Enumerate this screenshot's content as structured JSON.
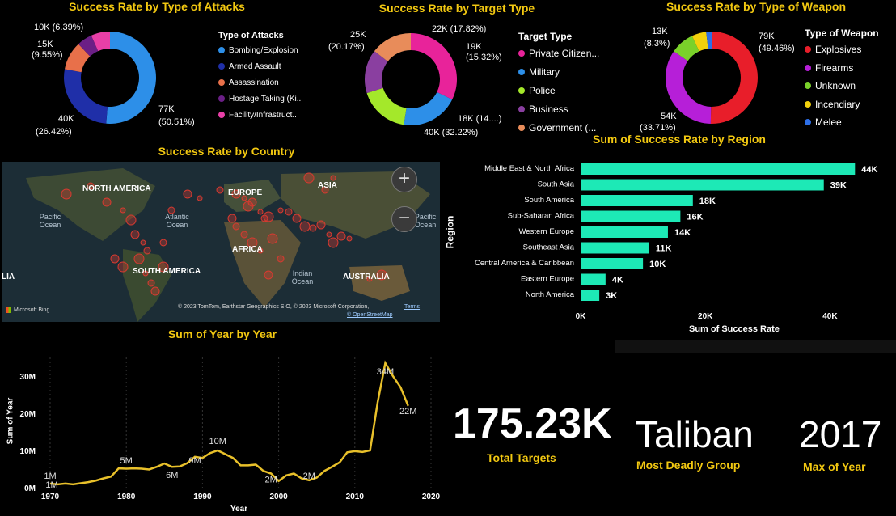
{
  "attacks": {
    "title": "Success Rate by Type of Attacks",
    "legend_title": "Type of Attacks",
    "items": [
      {
        "name": "Bombing/Explosion",
        "color": "#2d8fe8"
      },
      {
        "name": "Armed Assault",
        "color": "#1f2fa8"
      },
      {
        "name": "Assassination",
        "color": "#e8704a"
      },
      {
        "name": "Hostage Taking (Ki..",
        "color": "#6b1f86"
      },
      {
        "name": "Facility/Infrastruct..",
        "color": "#e83fa7"
      }
    ],
    "labels": [
      "10K (6.39%)",
      "15K",
      "(9.55%)",
      "40K",
      "(26.42%)",
      "77K",
      "(50.51%)"
    ]
  },
  "targets": {
    "title": "Success Rate by Target Type",
    "legend_title": "Target Type",
    "items": [
      {
        "name": "Private Citizen...",
        "color": "#e8239a"
      },
      {
        "name": "Military",
        "color": "#2d8fe8"
      },
      {
        "name": "Police",
        "color": "#a4e82a"
      },
      {
        "name": "Business",
        "color": "#8a3fa0"
      },
      {
        "name": "Government (...",
        "color": "#e88c5a"
      }
    ],
    "labels": [
      "25K",
      "(20.17%)",
      "22K (17.82%)",
      "19K",
      "(15.32%)",
      "18K (14....)",
      "40K (32.22%)"
    ]
  },
  "weapons": {
    "title": "Success Rate by Type of Weapon",
    "legend_title": "Type of Weapon",
    "items": [
      {
        "name": "Explosives",
        "color": "#e81e2a"
      },
      {
        "name": "Firearms",
        "color": "#b61fd8"
      },
      {
        "name": "Unknown",
        "color": "#7ad12a"
      },
      {
        "name": "Incendiary",
        "color": "#f2d10c"
      },
      {
        "name": "Melee",
        "color": "#2d6fe8"
      }
    ],
    "labels": [
      "13K",
      "(8.3%)",
      "79K",
      "(49.46%)",
      "54K",
      "(33.71%)"
    ]
  },
  "map": {
    "title": "Success Rate by Country",
    "zoom_in": "+",
    "zoom_out": "−",
    "continents": [
      "NORTH AMERICA",
      "EUROPE",
      "ASIA",
      "AFRICA",
      "SOUTH AMERICA",
      "AUSTRALIA",
      "LIA"
    ],
    "oceans": [
      "Pacific Ocean",
      "Atlantic Ocean",
      "Indian Ocean",
      "Pacific Ocean"
    ],
    "attribution": "© 2023 TomTom, Earthstar Geographics SIO, © 2023 Microsoft Corporation,",
    "terms": "Terms",
    "osm": "© OpenStreetMap",
    "bing": "Microsoft Bing"
  },
  "region_chart": {
    "title": "Sum of Success Rate by Region",
    "ylabel": "Region",
    "xlabel": "Sum of Success Rate",
    "color": "#1de9b6"
  },
  "line_chart": {
    "title": "Sum of Year by Year",
    "ylabel": "Sum of Year",
    "xlabel": "Year",
    "color": "#e8c02a",
    "annotations": [
      "1M",
      "1M",
      "5M",
      "6M",
      "9M",
      "10M",
      "2M",
      "2M",
      "34M",
      "22M"
    ]
  },
  "kpis": [
    {
      "value": "175.23K",
      "label": "Total Targets"
    },
    {
      "value": "Taliban",
      "label": "Most Deadly Group"
    },
    {
      "value": "2017",
      "label": "Max of Year"
    }
  ],
  "chart_data": [
    {
      "type": "pie",
      "title": "Success Rate by Type of Attacks",
      "categories": [
        "Bombing/Explosion",
        "Armed Assault",
        "Assassination",
        "Hostage Taking (Ki..",
        "Facility/Infrastruct.."
      ],
      "values": [
        77000,
        40000,
        15000,
        8000,
        10000
      ]
    },
    {
      "type": "pie",
      "title": "Success Rate by Target Type",
      "categories": [
        "Private Citizen...",
        "Military",
        "Police",
        "Business",
        "Government (..."
      ],
      "values": [
        40000,
        25000,
        22000,
        19000,
        18000
      ]
    },
    {
      "type": "pie",
      "title": "Success Rate by Type of Weapon",
      "categories": [
        "Explosives",
        "Firearms",
        "Unknown",
        "Incendiary",
        "Melee"
      ],
      "values": [
        79000,
        54000,
        13000,
        8000,
        3000
      ]
    },
    {
      "type": "bar",
      "title": "Sum of Success Rate by Region",
      "categories": [
        "Middle East & North Africa",
        "South Asia",
        "South America",
        "Sub-Saharan Africa",
        "Western Europe",
        "Southeast Asia",
        "Central America & Caribbean",
        "Eastern Europe",
        "North America"
      ],
      "values": [
        44000,
        39000,
        18000,
        16000,
        14000,
        11000,
        10000,
        4000,
        3000
      ],
      "data_labels": [
        "44K",
        "39K",
        "18K",
        "16K",
        "14K",
        "11K",
        "10K",
        "4K",
        "3K"
      ],
      "xlabel": "Sum of Success Rate",
      "ylabel": "Region",
      "xlim": [
        0,
        45000
      ],
      "xticks": [
        "0K",
        "20K",
        "40K"
      ]
    },
    {
      "type": "line",
      "title": "Sum of Year by Year",
      "x": [
        1970,
        1971,
        1972,
        1973,
        1974,
        1975,
        1976,
        1977,
        1978,
        1979,
        1980,
        1981,
        1982,
        1983,
        1984,
        1985,
        1986,
        1987,
        1988,
        1989,
        1990,
        1991,
        1992,
        1994,
        1995,
        1996,
        1997,
        1998,
        1999,
        2000,
        2001,
        2002,
        2003,
        2004,
        2005,
        2006,
        2007,
        2008,
        2009,
        2010,
        2011,
        2012,
        2013,
        2014,
        2015,
        2016,
        2017
      ],
      "y": [
        1.1,
        0.9,
        1.1,
        0.9,
        1.2,
        1.5,
        1.9,
        2.5,
        3.0,
        5.2,
        5.1,
        5.2,
        5.1,
        4.9,
        5.6,
        6.5,
        5.6,
        5.7,
        6.6,
        8.3,
        8.0,
        9.3,
        10.0,
        8.0,
        6.0,
        6.0,
        6.2,
        4.5,
        3.8,
        1.8,
        3.3,
        3.8,
        2.5,
        2.0,
        2.7,
        4.5,
        5.6,
        6.8,
        9.5,
        9.8,
        9.6,
        10.0,
        23.0,
        33.5,
        30.0,
        27.0,
        22.0
      ],
      "xlabel": "Year",
      "ylabel": "Sum of Year",
      "xlim": [
        1970,
        2020
      ],
      "ylim": [
        0,
        35
      ],
      "xticks": [
        "1970",
        "1980",
        "1990",
        "2000",
        "2010",
        "2020"
      ],
      "yticks": [
        "0M",
        "10M",
        "20M",
        "30M"
      ]
    }
  ]
}
